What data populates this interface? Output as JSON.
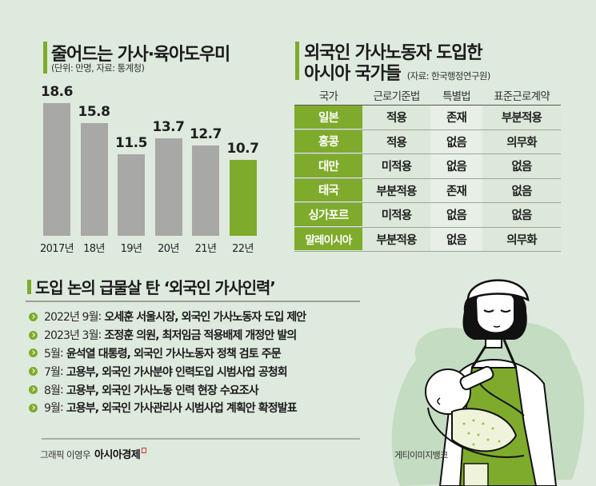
{
  "colors": {
    "background": "#dfeade",
    "accent_green": "#7fab2c",
    "bar_gray": "#a8a8a6",
    "text": "#1f1f1f"
  },
  "chart_section": {
    "title": "줄어드는 가사·육아도우미",
    "subtitle": "(단위: 만명, 자료: 통계청)"
  },
  "chart_data": {
    "type": "bar",
    "title": "줄어드는 가사·육아도우미",
    "subtitle": "(단위: 만명, 자료: 통계청)",
    "unit": "만명",
    "source": "통계청",
    "categories": [
      "2017년",
      "18년",
      "19년",
      "20년",
      "21년",
      "22년"
    ],
    "values": [
      18.6,
      15.8,
      11.5,
      13.7,
      12.7,
      10.7
    ],
    "value_labels": [
      "18.6",
      "15.8",
      "11.5",
      "13.7",
      "12.7",
      "10.7"
    ],
    "highlight_index": 5,
    "xlabel": "",
    "ylabel": "",
    "ylim": [
      0,
      20
    ],
    "grid": false,
    "legend": null
  },
  "table_section": {
    "title_line1": "외국인 가사노동자 도입한",
    "title_line2": "아시아 국가들",
    "source": "(자료: 한국행정연구원)",
    "headers": [
      "국가",
      "근로기준법",
      "특별법",
      "표준근로계약"
    ],
    "rows": [
      [
        "일본",
        "적용",
        "존재",
        "부분적용"
      ],
      [
        "홍콩",
        "적용",
        "없음",
        "의무화"
      ],
      [
        "대만",
        "미적용",
        "없음",
        "없음"
      ],
      [
        "태국",
        "부분적용",
        "존재",
        "없음"
      ],
      [
        "싱가포르",
        "미적용",
        "없음",
        "없음"
      ],
      [
        "말레이시아",
        "부분적용",
        "없음",
        "의무화"
      ]
    ]
  },
  "timeline_section": {
    "title": "도입 논의 급물살 탄 ‘외국인 가사인력’",
    "items": [
      {
        "date": "2022년 9월",
        "text": "오세훈 서울시장, 외국인 가사노동자 도입 제안"
      },
      {
        "date": "2023년 3월",
        "text": "조정훈 의원, 최저임금 적용배제 개정안 발의"
      },
      {
        "date": "5월",
        "text": "윤석열 대통령, 외국인 가사노동자 정책 검토 주문"
      },
      {
        "date": "7월",
        "text": "고용부, 외국인 가사분야 인력도입 시범사업 공청회"
      },
      {
        "date": "8월",
        "text": "고용부, 외국인 가사노동 인력 현장 수요조사"
      },
      {
        "date": "9월",
        "text": "고용부, 외국인 가사관리사 시범사업 계획안 확정발표"
      }
    ]
  },
  "credits": {
    "graphic": "그래픽 이영우",
    "brand": "아시아경제",
    "photo": "게티이미지뱅크"
  },
  "illustration": {
    "icon": "caregiver-feeding-baby-illustration"
  }
}
